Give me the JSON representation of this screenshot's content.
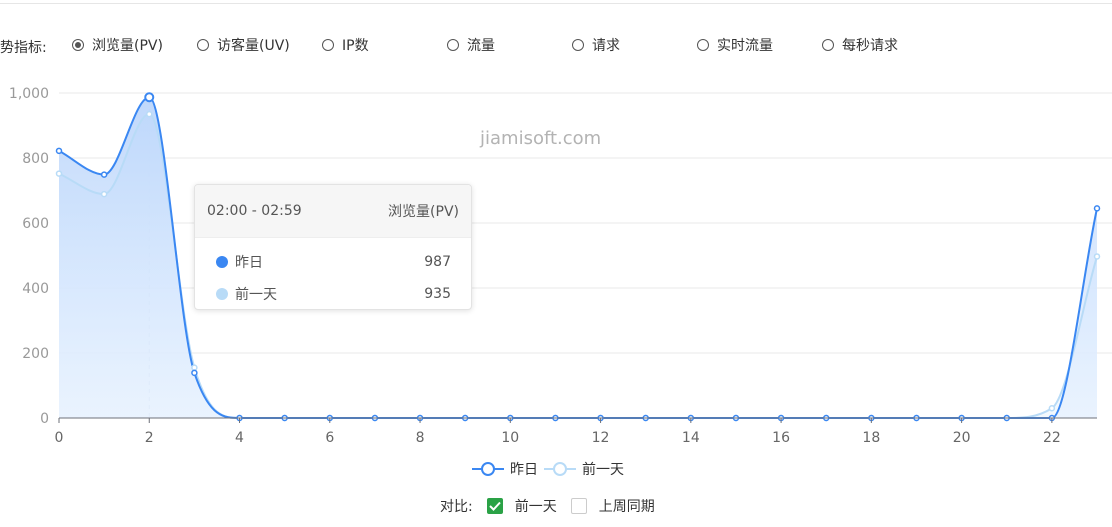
{
  "metrics": {
    "label": "趋势指标:",
    "options": [
      {
        "label": "浏览量(PV)",
        "selected": true
      },
      {
        "label": "访客量(UV)",
        "selected": false
      },
      {
        "label": "IP数",
        "selected": false
      },
      {
        "label": "流量",
        "selected": false
      },
      {
        "label": "请求",
        "selected": false
      },
      {
        "label": "实时流量",
        "selected": false
      },
      {
        "label": "每秒请求",
        "selected": false
      }
    ]
  },
  "watermark": "jiamisoft.com",
  "tooltip": {
    "time": "02:00 - 02:59",
    "metric": "浏览量(PV)",
    "rows": [
      {
        "name": "昨日",
        "value": "987",
        "color": "#3a87f2"
      },
      {
        "name": "前一天",
        "value": "935",
        "color": "#b8dbf7"
      }
    ]
  },
  "legend": [
    {
      "name": "昨日",
      "color": "#3a87f2"
    },
    {
      "name": "前一天",
      "color": "#b8dbf7"
    }
  ],
  "compare": {
    "label": "对比:",
    "options": [
      {
        "label": "前一天",
        "checked": true
      },
      {
        "label": "上周同期",
        "checked": false
      }
    ]
  },
  "chart_data": {
    "type": "area",
    "x": [
      0,
      1,
      2,
      3,
      4,
      5,
      6,
      7,
      8,
      9,
      10,
      11,
      12,
      13,
      14,
      15,
      16,
      17,
      18,
      19,
      20,
      21,
      22,
      23
    ],
    "xticks": [
      "0",
      "2",
      "4",
      "6",
      "8",
      "10",
      "12",
      "14",
      "16",
      "18",
      "20",
      "22"
    ],
    "yticks": [
      "0",
      "200",
      "400",
      "600",
      "800",
      "1,000"
    ],
    "ylim": [
      0,
      1000
    ],
    "highlight_x": 2,
    "series": [
      {
        "name": "昨日",
        "color": "#3a87f2",
        "values": [
          822,
          749,
          987,
          139,
          0,
          0,
          0,
          0,
          0,
          0,
          0,
          0,
          0,
          0,
          0,
          0,
          0,
          0,
          0,
          0,
          0,
          0,
          0,
          645
        ]
      },
      {
        "name": "前一天",
        "color": "#b8dbf7",
        "values": [
          752,
          689,
          935,
          155,
          0,
          0,
          0,
          0,
          0,
          0,
          0,
          0,
          0,
          0,
          0,
          0,
          0,
          0,
          0,
          0,
          0,
          0,
          30,
          497
        ]
      }
    ]
  }
}
